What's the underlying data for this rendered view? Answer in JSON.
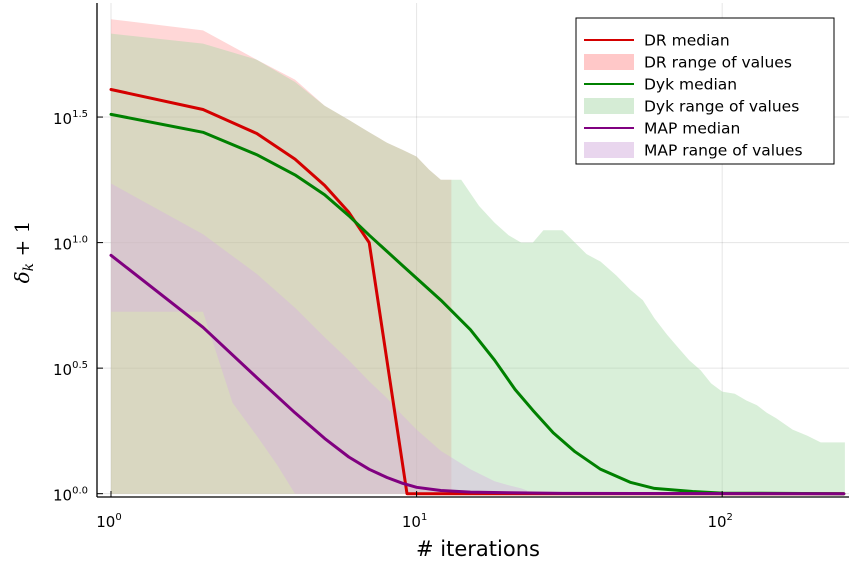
{
  "chart_data": {
    "type": "line",
    "xlabel": "# iterations",
    "ylabel": "δ_k + 1",
    "ylabel_parts": {
      "main": "δ",
      "sub": "k",
      "rest": " + 1"
    },
    "x_scale": "log10",
    "y_scale": "log10",
    "xlim": [
      0.9,
      260
    ],
    "ylim": [
      0.97,
      90
    ],
    "x_ticks": [
      {
        "value": 1,
        "base": "10",
        "exp": "0"
      },
      {
        "value": 10,
        "base": "10",
        "exp": "1"
      },
      {
        "value": 100,
        "base": "10",
        "exp": "2"
      }
    ],
    "y_ticks": [
      {
        "value": 1.0,
        "base": "10",
        "exp": "0.0"
      },
      {
        "value": 3.1623,
        "base": "10",
        "exp": "0.5"
      },
      {
        "value": 10.0,
        "base": "10",
        "exp": "1.0"
      },
      {
        "value": 31.623,
        "base": "10",
        "exp": "1.5"
      }
    ],
    "grid": true,
    "legend_position": "top-right",
    "series": [
      {
        "name": "DR median",
        "kind": "line",
        "color": "#d40000",
        "points": [
          [
            1,
            40.7
          ],
          [
            2,
            33.9
          ],
          [
            3,
            27.2
          ],
          [
            4,
            21.5
          ],
          [
            5,
            16.9
          ],
          [
            6,
            13.2
          ],
          [
            7,
            10.0
          ],
          [
            9.3,
            1.0
          ],
          [
            250,
            1.0
          ]
        ]
      },
      {
        "name": "DR range of values",
        "kind": "band",
        "color": "#ff9a9a",
        "upper": [
          [
            1,
            77.6
          ],
          [
            2,
            70.0
          ],
          [
            3,
            53.5
          ],
          [
            4,
            44.6
          ],
          [
            5,
            35.1
          ],
          [
            6,
            30.8
          ],
          [
            7,
            27.5
          ],
          [
            8,
            25.0
          ],
          [
            9,
            23.4
          ],
          [
            10,
            22.0
          ],
          [
            11,
            19.5
          ],
          [
            12,
            17.8
          ],
          [
            13,
            17.8
          ]
        ],
        "lower": [
          [
            1,
            1.0
          ],
          [
            13,
            1.0
          ]
        ]
      },
      {
        "name": "Dyk median",
        "kind": "line",
        "color": "#008000",
        "points": [
          [
            1,
            32.4
          ],
          [
            2,
            27.5
          ],
          [
            3,
            22.4
          ],
          [
            4,
            18.6
          ],
          [
            5,
            15.5
          ],
          [
            6,
            12.8
          ],
          [
            7,
            10.7
          ],
          [
            9,
            8.1
          ],
          [
            12,
            5.9
          ],
          [
            15,
            4.5
          ],
          [
            18,
            3.4
          ],
          [
            21,
            2.6
          ],
          [
            24,
            2.15
          ],
          [
            28,
            1.75
          ],
          [
            33,
            1.47
          ],
          [
            40,
            1.25
          ],
          [
            50,
            1.11
          ],
          [
            60,
            1.05
          ],
          [
            80,
            1.02
          ],
          [
            100,
            1.005
          ],
          [
            250,
            1.0
          ]
        ]
      },
      {
        "name": "Dyk range of values",
        "kind": "band",
        "color": "#9fd69f",
        "upper": [
          [
            1,
            68.0
          ],
          [
            2,
            62.0
          ],
          [
            3,
            53.5
          ],
          [
            4,
            43.6
          ],
          [
            5,
            35.1
          ],
          [
            6,
            30.8
          ],
          [
            7,
            27.5
          ],
          [
            8,
            25.0
          ],
          [
            9,
            23.4
          ],
          [
            10,
            22.0
          ],
          [
            11,
            19.5
          ],
          [
            12,
            17.8
          ],
          [
            14,
            17.8
          ],
          [
            16,
            14.0
          ],
          [
            18,
            12.0
          ],
          [
            20,
            10.7
          ],
          [
            22,
            10.0
          ],
          [
            24,
            10.0
          ],
          [
            26,
            11.2
          ],
          [
            30,
            11.2
          ],
          [
            33,
            10.0
          ],
          [
            36,
            9.0
          ],
          [
            40,
            8.4
          ],
          [
            45,
            7.4
          ],
          [
            50,
            6.5
          ],
          [
            55,
            5.9
          ],
          [
            60,
            5.0
          ],
          [
            66,
            4.3
          ],
          [
            72,
            3.8
          ],
          [
            78,
            3.4
          ],
          [
            85,
            3.1
          ],
          [
            92,
            2.75
          ],
          [
            100,
            2.55
          ],
          [
            110,
            2.5
          ],
          [
            120,
            2.35
          ],
          [
            130,
            2.25
          ],
          [
            140,
            2.1
          ],
          [
            150,
            2.0
          ],
          [
            170,
            1.8
          ],
          [
            190,
            1.7
          ],
          [
            210,
            1.6
          ],
          [
            230,
            1.6
          ],
          [
            252,
            1.6
          ]
        ],
        "lower": [
          [
            1,
            1.0
          ],
          [
            252,
            1.0
          ]
        ]
      },
      {
        "name": "MAP median",
        "kind": "line",
        "color": "#800080",
        "points": [
          [
            1,
            8.9
          ],
          [
            2,
            4.6
          ],
          [
            3,
            2.9
          ],
          [
            4,
            2.1
          ],
          [
            5,
            1.66
          ],
          [
            6,
            1.4
          ],
          [
            7,
            1.25
          ],
          [
            8,
            1.16
          ],
          [
            9,
            1.1
          ],
          [
            10,
            1.06
          ],
          [
            12,
            1.03
          ],
          [
            15,
            1.015
          ],
          [
            20,
            1.008
          ],
          [
            30,
            1.003
          ],
          [
            250,
            1.0
          ]
        ]
      },
      {
        "name": "MAP range of values",
        "kind": "band",
        "color": "#d7b0e0",
        "upper": [
          [
            1,
            17.2
          ],
          [
            2,
            10.8
          ],
          [
            3,
            7.5
          ],
          [
            4,
            5.5
          ],
          [
            5,
            4.2
          ],
          [
            6,
            3.4
          ],
          [
            7,
            2.8
          ],
          [
            8,
            2.4
          ],
          [
            9,
            2.05
          ],
          [
            10,
            1.8
          ],
          [
            12,
            1.48
          ],
          [
            15,
            1.25
          ],
          [
            18,
            1.12
          ],
          [
            20,
            1.08
          ],
          [
            22,
            1.05
          ],
          [
            23,
            1.03
          ]
        ],
        "lower": [
          [
            1,
            5.3
          ],
          [
            2,
            5.3
          ],
          [
            2.5,
            2.3
          ],
          [
            3,
            1.7
          ],
          [
            3.5,
            1.3
          ],
          [
            4,
            1.0
          ],
          [
            23,
            1.0
          ]
        ]
      }
    ]
  },
  "legend": {
    "items": [
      {
        "label": "DR median",
        "kind": "line",
        "color": "#d40000"
      },
      {
        "label": "DR range of values",
        "kind": "band",
        "color": "#ffc8c8"
      },
      {
        "label": "Dyk median",
        "kind": "line",
        "color": "#008000"
      },
      {
        "label": "Dyk range of values",
        "kind": "band",
        "color": "#d5ecd5"
      },
      {
        "label": "MAP median",
        "kind": "line",
        "color": "#800080"
      },
      {
        "label": "MAP range of values",
        "kind": "band",
        "color": "#e9d6ee"
      }
    ]
  }
}
